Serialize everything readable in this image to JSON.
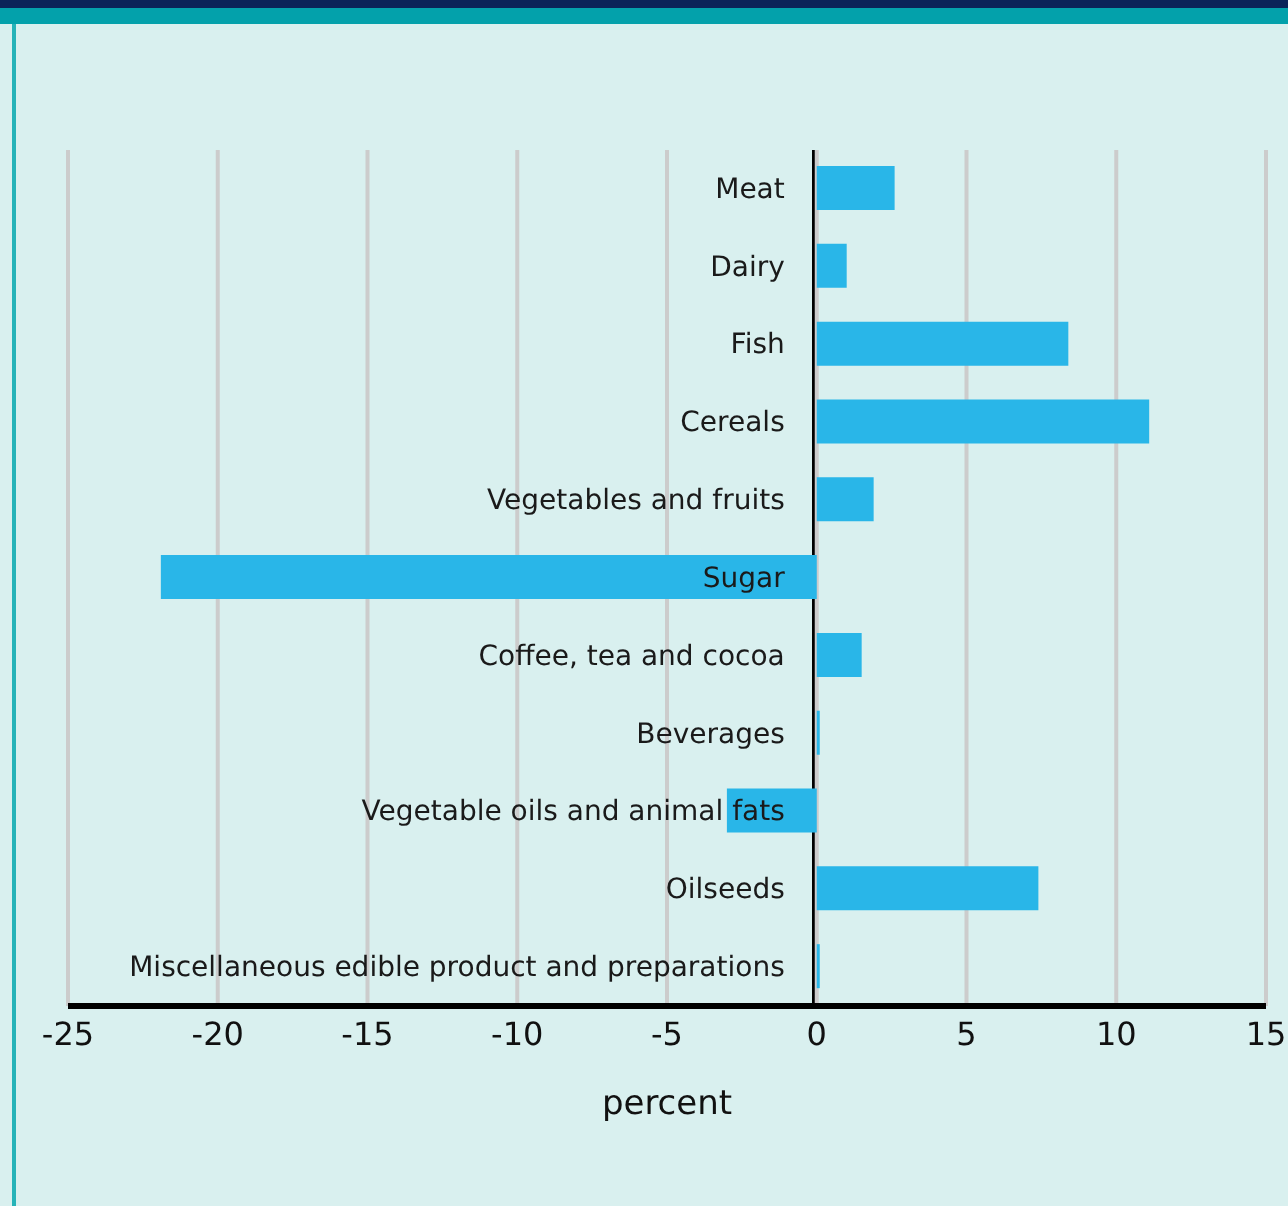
{
  "chart_data": {
    "type": "bar",
    "orientation": "horizontal",
    "xlabel": "percent",
    "categories": [
      "Meat",
      "Dairy",
      "Fish",
      "Cereals",
      "Vegetables and fruits",
      "Sugar",
      "Coffee, tea and cocoa",
      "Beverages",
      "Vegetable oils and animal fats",
      "Oilseeds",
      "Miscellaneous edible product and preparations"
    ],
    "values": [
      2.6,
      1.0,
      8.4,
      11.1,
      1.9,
      -21.9,
      1.5,
      0.1,
      -3.0,
      7.4,
      0.1
    ],
    "color": "#29b6e8",
    "xlim": [
      -25,
      15
    ],
    "xticks": [
      -25,
      -20,
      -15,
      -10,
      -5,
      0,
      5,
      10,
      15
    ],
    "grid": "x"
  }
}
